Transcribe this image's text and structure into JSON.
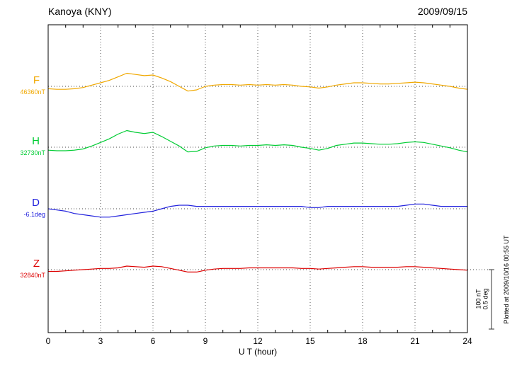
{
  "header": {
    "station": "Kanoya (KNY)",
    "date": "2009/09/15"
  },
  "chart_data": {
    "type": "line",
    "title": "Kanoya (KNY)",
    "subtitle": "2009/09/15",
    "xlabel": "U T (hour)",
    "x_range": [
      0,
      24
    ],
    "x_ticks": [
      0,
      3,
      6,
      9,
      12,
      15,
      18,
      21,
      24
    ],
    "x_step_hours": 0.5,
    "grid": "dotted vertical lines every 3 h; dotted horizontal baseline for each component",
    "legend_position": "left-margin component labels",
    "plotted_at": "Plotted at 2009/10/16 00:55 UT",
    "scale_bar": {
      "nT_label": "100 nT",
      "deg_label": "0.5 deg",
      "nT_span": 100,
      "deg_span": 0.5
    },
    "series": [
      {
        "name": "F",
        "unit": "nT",
        "baseline_label": "46360nT",
        "baseline_value": 46360,
        "color": "#f0a800",
        "offsets": [
          -4,
          -5,
          -5,
          -4,
          -2,
          2,
          6,
          10,
          16,
          22,
          20,
          18,
          19,
          14,
          8,
          0,
          -8,
          -6,
          0,
          2,
          3,
          3,
          2,
          3,
          2,
          3,
          2,
          3,
          2,
          0,
          -1,
          -3,
          -1,
          2,
          4,
          6,
          6,
          5,
          4,
          4,
          5,
          6,
          7,
          6,
          4,
          2,
          0,
          -3,
          -5
        ]
      },
      {
        "name": "H",
        "unit": "nT",
        "baseline_label": "32730nT",
        "baseline_value": 32730,
        "color": "#00cc33",
        "offsets": [
          -5,
          -6,
          -6,
          -5,
          -3,
          2,
          8,
          14,
          22,
          28,
          25,
          23,
          25,
          18,
          10,
          2,
          -8,
          -7,
          -1,
          2,
          3,
          3,
          2,
          3,
          3,
          4,
          3,
          4,
          3,
          0,
          -2,
          -5,
          -2,
          3,
          5,
          7,
          7,
          6,
          5,
          5,
          6,
          8,
          9,
          8,
          5,
          2,
          -1,
          -5,
          -8
        ]
      },
      {
        "name": "D",
        "unit": "deg",
        "baseline_label": "-6.1deg",
        "baseline_value": -6.1,
        "color": "#2222dd",
        "offsets": [
          0,
          -0.01,
          -0.02,
          -0.04,
          -0.05,
          -0.06,
          -0.07,
          -0.07,
          -0.06,
          -0.05,
          -0.04,
          -0.03,
          -0.02,
          0,
          0.02,
          0.03,
          0.03,
          0.02,
          0.02,
          0.02,
          0.02,
          0.02,
          0.02,
          0.02,
          0.02,
          0.02,
          0.02,
          0.02,
          0.02,
          0.02,
          0.01,
          0.01,
          0.02,
          0.02,
          0.02,
          0.02,
          0.02,
          0.02,
          0.02,
          0.02,
          0.02,
          0.03,
          0.04,
          0.04,
          0.03,
          0.02,
          0.02,
          0.02,
          0.02
        ]
      },
      {
        "name": "Z",
        "unit": "nT",
        "baseline_label": "32840nT",
        "baseline_value": 32840,
        "color": "#dd0000",
        "offsets": [
          -3,
          -3,
          -2,
          -1,
          0,
          1,
          2,
          2,
          3,
          6,
          5,
          4,
          6,
          5,
          2,
          -1,
          -4,
          -4,
          -1,
          1,
          2,
          2,
          2,
          3,
          3,
          3,
          3,
          3,
          3,
          2,
          2,
          1,
          2,
          3,
          4,
          5,
          5,
          4,
          4,
          4,
          4,
          5,
          5,
          4,
          3,
          2,
          1,
          0,
          -1
        ]
      }
    ]
  }
}
